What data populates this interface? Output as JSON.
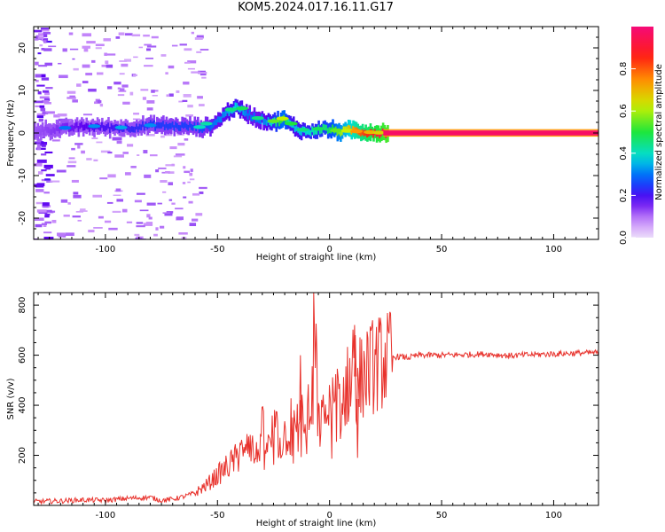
{
  "title": "KOM5.2024.017.16.11.G17",
  "colors": {
    "snr_line": "#e8322c",
    "axis": "#000000",
    "background": "#ffffff"
  },
  "chart_data": [
    {
      "type": "heatmap",
      "xlabel": "Height of straight line (km)",
      "ylabel": "Frequency (Hz)",
      "xlim": [
        -132,
        120
      ],
      "ylim": [
        -25,
        25
      ],
      "x_ticks": [
        -100,
        -50,
        0,
        50,
        100
      ],
      "x_tick_labels": [
        "-100",
        "-50",
        "0",
        "50",
        "100"
      ],
      "y_ticks": [
        -20,
        -10,
        0,
        10,
        20
      ],
      "y_tick_labels": [
        "-20",
        "-10",
        "0",
        "10",
        "20"
      ],
      "grid": false,
      "ridge": {
        "x": [
          -132,
          -120,
          -110,
          -100,
          -90,
          -80,
          -70,
          -62,
          -57,
          -52,
          -47,
          -43,
          -40,
          -37,
          -33,
          -29,
          -25,
          -21,
          -18,
          -15,
          -12,
          -9,
          -6,
          -3,
          0,
          3,
          6,
          9,
          12,
          16,
          20,
          24,
          30,
          60,
          90,
          120
        ],
        "freq": [
          0.5,
          1,
          1.5,
          1.3,
          1.2,
          1.8,
          1.6,
          1.5,
          1.2,
          2.0,
          4.5,
          6.0,
          5.5,
          4.5,
          3.5,
          3.0,
          2.5,
          3.2,
          2.0,
          1.0,
          0.5,
          0.2,
          0.8,
          1.0,
          0.8,
          0.5,
          0.3,
          0.8,
          0.5,
          0.2,
          0.1,
          0.0,
          0.0,
          0.0,
          0.0,
          0.0
        ],
        "amplitude": [
          0.12,
          0.15,
          0.18,
          0.2,
          0.22,
          0.24,
          0.25,
          0.25,
          0.26,
          0.3,
          0.32,
          0.38,
          0.35,
          0.3,
          0.3,
          0.32,
          0.42,
          0.55,
          0.38,
          0.35,
          0.38,
          0.4,
          0.42,
          0.45,
          0.48,
          0.55,
          0.62,
          0.7,
          0.78,
          0.85,
          0.9,
          0.95,
          1.0,
          1.0,
          1.0,
          1.0
        ]
      },
      "colorbar": {
        "label": "Normalized spectral amplitude",
        "range": [
          0,
          1
        ],
        "ticks": [
          0.0,
          0.2,
          0.4,
          0.6,
          0.8
        ],
        "tick_labels": [
          "0.0",
          "0.2",
          "0.4",
          "0.6",
          "0.8"
        ]
      }
    },
    {
      "type": "line",
      "xlabel": "Height of straight line (km)",
      "ylabel": "SNR (v/v)",
      "xlim": [
        -132,
        120
      ],
      "ylim": [
        0,
        850
      ],
      "x_ticks": [
        -100,
        -50,
        0,
        50,
        100
      ],
      "x_tick_labels": [
        "-100",
        "-50",
        "0",
        "50",
        "100"
      ],
      "y_ticks": [
        200,
        400,
        600,
        800
      ],
      "y_tick_labels": [
        "200",
        "400",
        "600",
        "800"
      ],
      "grid": false,
      "series": [
        {
          "x": [
            -132,
            -120,
            -110,
            -100,
            -90,
            -80,
            -75,
            -70,
            -65,
            -60,
            -55,
            -50,
            -45,
            -40,
            -37,
            -35,
            -33,
            -30,
            -27,
            -25,
            -22,
            -20,
            -17,
            -15,
            -12,
            -10,
            -8,
            -7,
            -5,
            -3,
            0,
            3,
            5,
            8,
            10,
            11,
            12,
            13,
            15,
            18,
            20,
            25,
            30,
            35,
            40,
            50,
            60,
            70,
            80,
            90,
            100,
            110,
            120
          ],
          "y": [
            15,
            18,
            22,
            20,
            28,
            32,
            20,
            25,
            35,
            50,
            80,
            120,
            160,
            200,
            290,
            250,
            180,
            300,
            220,
            310,
            250,
            280,
            330,
            300,
            360,
            370,
            340,
            850,
            310,
            340,
            380,
            420,
            400,
            480,
            520,
            680,
            350,
            500,
            520,
            550,
            560,
            580,
            595,
            590,
            600,
            600,
            602,
            605,
            598,
            602,
            605,
            608,
            610
          ]
        }
      ]
    }
  ]
}
